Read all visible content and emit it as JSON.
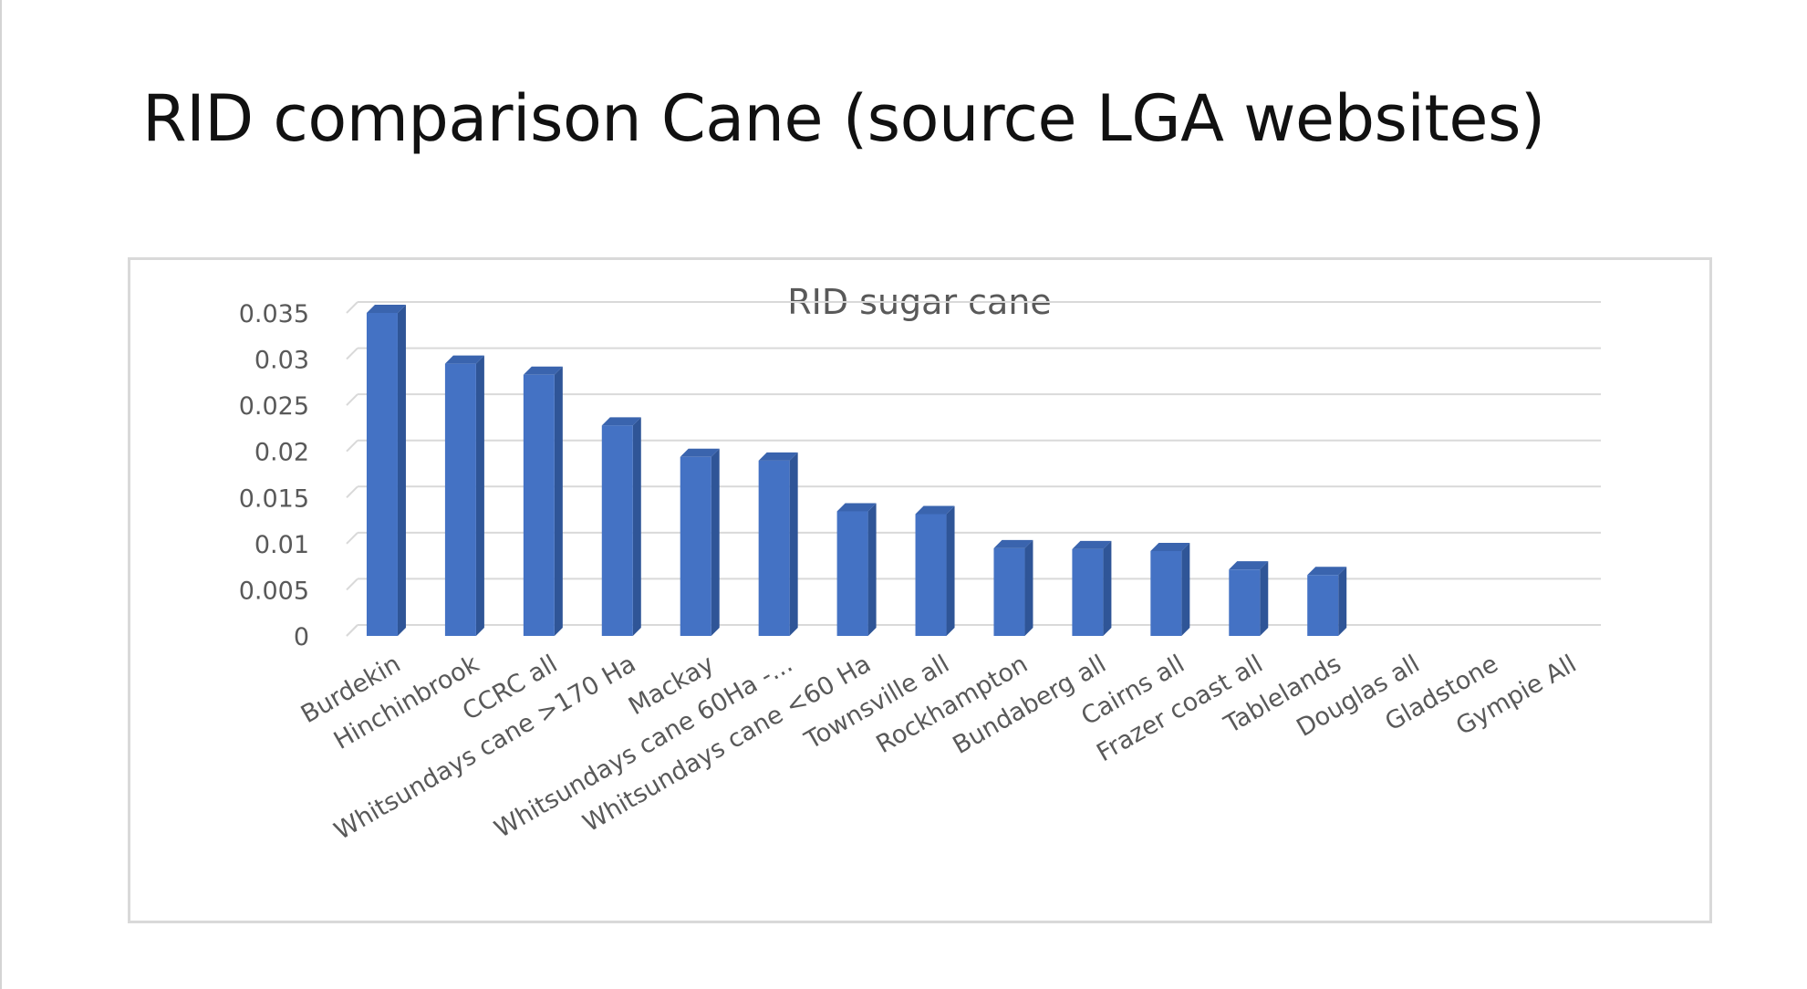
{
  "slide": {
    "title": "RID comparison Cane (source LGA websites)"
  },
  "colors": {
    "bar_front": "#4472C4",
    "bar_side": "#2F5597",
    "bar_top": "#3A64AE",
    "gridline": "#d9d9d9",
    "axis_text": "#595959",
    "title_text": "#595959"
  },
  "chart_data": {
    "type": "bar",
    "title": "RID sugar cane",
    "xlabel": "",
    "ylabel": "",
    "ylim": [
      0,
      0.035
    ],
    "grid": true,
    "legend": "none",
    "yticks": [
      "0",
      "0.005",
      "0.01",
      "0.015",
      "0.02",
      "0.025",
      "0.03",
      "0.035"
    ],
    "categories": [
      "Burdekin",
      "Hinchinbrook",
      "CCRC all",
      "Whitsundays cane >170 Ha",
      "Mackay",
      "Whitsundays cane 60Ha -...",
      "Whitsundays cane <60 Ha",
      "Townsville all",
      "Rockhampton",
      "Bundaberg all",
      "Cairns all",
      "Frazer coast all",
      "Tablelands",
      "Douglas all",
      "Gladstone",
      "Gympie All"
    ],
    "values": [
      0.035,
      0.0295,
      0.0283,
      0.0228,
      0.0194,
      0.019,
      0.0135,
      0.0132,
      0.0095,
      0.0094,
      0.0092,
      0.0072,
      0.0066,
      0,
      0,
      0
    ]
  }
}
